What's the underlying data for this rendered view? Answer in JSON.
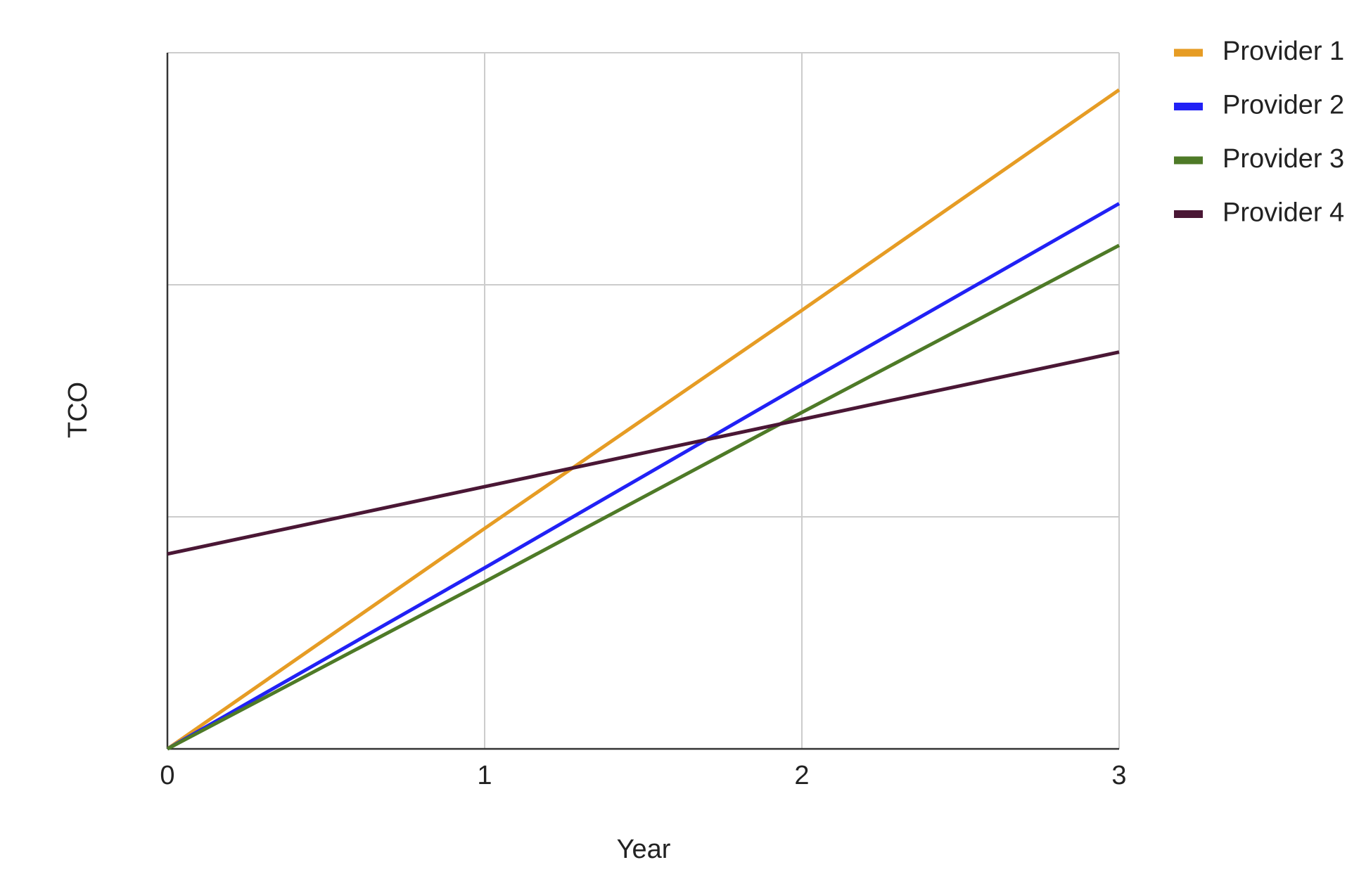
{
  "chart_data": {
    "type": "line",
    "x_label": "Year",
    "y_label": "TCO",
    "x": [
      0,
      1,
      2,
      3
    ],
    "xlim": [
      0,
      3
    ],
    "xticks": [
      0,
      1,
      2,
      3
    ],
    "ylim": [
      0,
      3
    ],
    "yticks": [
      0,
      1,
      2,
      3
    ],
    "grid": true,
    "legend": "right",
    "series": [
      {
        "name": "Provider 1",
        "color": "#e69c24",
        "values": [
          0,
          0.95,
          1.89,
          2.84
        ]
      },
      {
        "name": "Provider 2",
        "color": "#2121f5",
        "values": [
          0,
          0.78,
          1.57,
          2.35
        ]
      },
      {
        "name": "Provider 3",
        "color": "#4e7a27",
        "values": [
          0,
          0.72,
          1.45,
          2.17
        ]
      },
      {
        "name": "Provider 4",
        "color": "#4a1735",
        "values": [
          0.84,
          1.13,
          1.42,
          1.71
        ]
      }
    ]
  }
}
